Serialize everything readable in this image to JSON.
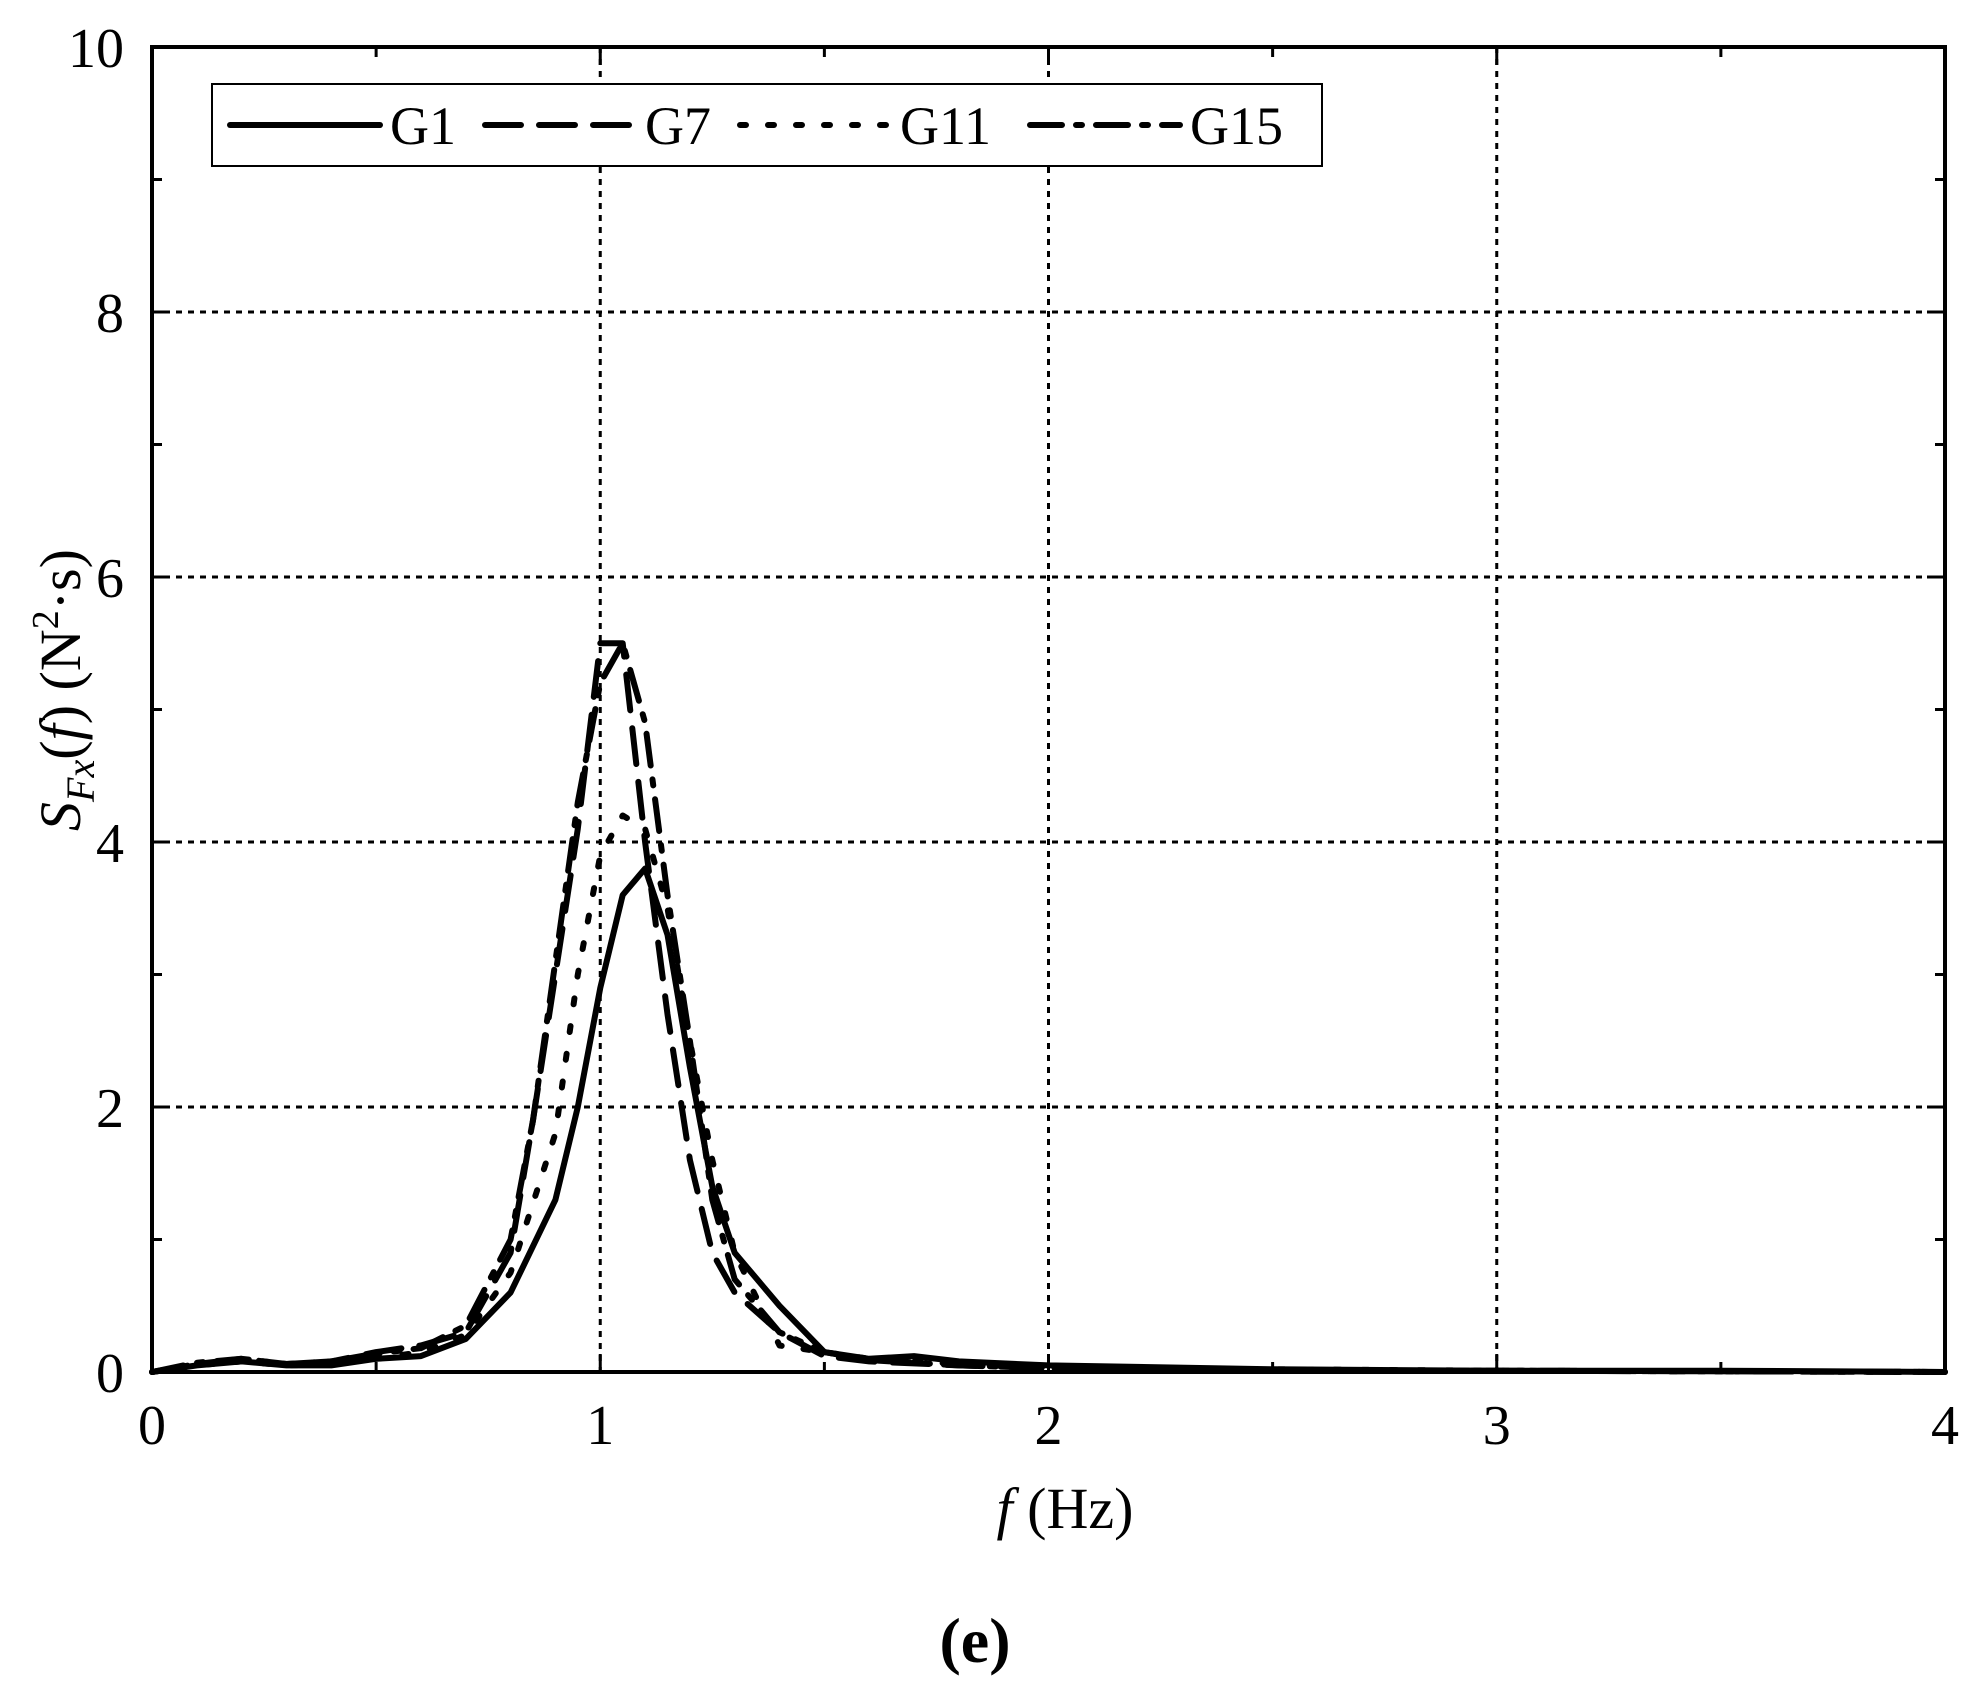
{
  "chart_data": {
    "type": "line",
    "xlabel_italic": "f",
    "xlabel_unit": " (Hz)",
    "ylabel": {
      "symbol": "S",
      "subscript": "Fx",
      "open": "(",
      "arg": "f",
      "close": ")",
      "unit_prefix": " (N",
      "unit_sup": "2",
      "unit_suffix": "·s)"
    },
    "panel_label": "(e)",
    "xlim": [
      0,
      4
    ],
    "ylim": [
      0,
      10
    ],
    "x_ticks": [
      0,
      1,
      2,
      3,
      4
    ],
    "x_tick_labels": [
      "0",
      "1",
      "2",
      "3",
      "4"
    ],
    "y_ticks": [
      0,
      2,
      4,
      6,
      8,
      10
    ],
    "y_tick_labels": [
      "0",
      "2",
      "4",
      "6",
      "8",
      "10"
    ],
    "grid": true,
    "legend_position": "top-left",
    "series": [
      {
        "name": "G1",
        "style": "solid",
        "x": [
          0,
          0.1,
          0.2,
          0.3,
          0.4,
          0.5,
          0.6,
          0.7,
          0.8,
          0.9,
          0.95,
          1.0,
          1.05,
          1.1,
          1.15,
          1.2,
          1.25,
          1.3,
          1.4,
          1.5,
          1.6,
          1.7,
          1.8,
          2.0,
          2.5,
          3.0,
          3.5,
          4.0
        ],
        "y": [
          0.0,
          0.05,
          0.08,
          0.05,
          0.05,
          0.1,
          0.12,
          0.25,
          0.6,
          1.3,
          2.0,
          2.9,
          3.6,
          3.8,
          3.3,
          2.3,
          1.4,
          0.9,
          0.5,
          0.15,
          0.1,
          0.12,
          0.08,
          0.05,
          0.02,
          0.01,
          0.01,
          0.0
        ]
      },
      {
        "name": "G7",
        "style": "dashed",
        "x": [
          0,
          0.1,
          0.2,
          0.3,
          0.4,
          0.5,
          0.6,
          0.7,
          0.8,
          0.85,
          0.9,
          0.95,
          1.0,
          1.05,
          1.1,
          1.15,
          1.2,
          1.25,
          1.3,
          1.4,
          1.5,
          1.6,
          1.8,
          2.0,
          2.5,
          3.0,
          4.0
        ],
        "y": [
          0.0,
          0.06,
          0.1,
          0.06,
          0.08,
          0.15,
          0.2,
          0.3,
          0.9,
          1.9,
          3.0,
          4.1,
          5.5,
          5.5,
          4.0,
          2.7,
          1.6,
          0.9,
          0.6,
          0.3,
          0.12,
          0.08,
          0.05,
          0.03,
          0.01,
          0.01,
          0.0
        ]
      },
      {
        "name": "G11",
        "style": "dotted",
        "x": [
          0,
          0.1,
          0.2,
          0.3,
          0.4,
          0.5,
          0.6,
          0.7,
          0.8,
          0.9,
          0.95,
          1.0,
          1.05,
          1.1,
          1.15,
          1.2,
          1.25,
          1.3,
          1.4,
          1.5,
          1.6,
          1.8,
          2.0,
          2.5,
          3.0,
          4.0
        ],
        "y": [
          0.0,
          0.05,
          0.08,
          0.05,
          0.06,
          0.1,
          0.15,
          0.28,
          0.75,
          1.8,
          3.0,
          3.9,
          4.2,
          4.1,
          3.5,
          2.5,
          1.6,
          0.9,
          0.2,
          0.15,
          0.1,
          0.06,
          0.04,
          0.02,
          0.01,
          0.0
        ]
      },
      {
        "name": "G15",
        "style": "dashdot",
        "x": [
          0,
          0.1,
          0.2,
          0.3,
          0.4,
          0.5,
          0.6,
          0.7,
          0.8,
          0.85,
          0.9,
          0.95,
          1.0,
          1.05,
          1.1,
          1.15,
          1.2,
          1.25,
          1.3,
          1.4,
          1.5,
          1.6,
          1.8,
          2.0,
          2.5,
          3.0,
          4.0
        ],
        "y": [
          0.0,
          0.07,
          0.1,
          0.06,
          0.08,
          0.14,
          0.18,
          0.35,
          1.0,
          1.9,
          3.1,
          4.3,
          5.2,
          5.5,
          4.9,
          3.6,
          2.5,
          1.3,
          0.7,
          0.3,
          0.15,
          0.09,
          0.05,
          0.03,
          0.01,
          0.01,
          0.0
        ]
      }
    ]
  }
}
